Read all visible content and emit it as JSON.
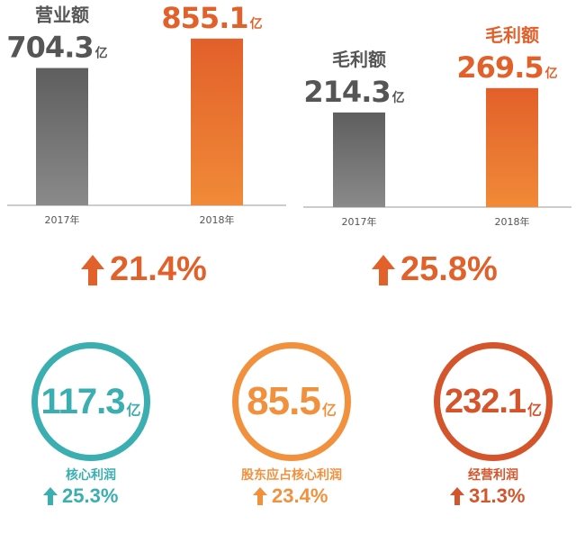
{
  "colors": {
    "gray": "#707070",
    "orange": "#e2602a",
    "orange_light": "#f08a38",
    "teal": "#3aaeb0",
    "amber": "#f1913e",
    "rust": "#d4552c",
    "text_dark": "#555555"
  },
  "chart_data": [
    {
      "type": "bar",
      "categories": [
        "2017年",
        "2018年"
      ],
      "series": [
        {
          "name": "营业额",
          "values": [
            704.3,
            855.1
          ]
        }
      ],
      "value_labels": [
        "704.3",
        "855.1"
      ],
      "unit": "亿",
      "growth": "21.4%"
    },
    {
      "type": "bar",
      "categories": [
        "2017年",
        "2018年"
      ],
      "series": [
        {
          "name": "毛利额",
          "values": [
            214.3,
            269.5
          ]
        }
      ],
      "value_labels": [
        "214.3",
        "269.5"
      ],
      "unit": "亿",
      "growth": "25.8%"
    }
  ],
  "stats": [
    {
      "value": "117.3",
      "unit": "亿",
      "label": "核心利润",
      "growth": "25.3%",
      "color": "#3aaeb0"
    },
    {
      "value": "85.5",
      "unit": "亿",
      "label": "股东应占核心利润",
      "growth": "23.4%",
      "color": "#f1913e"
    },
    {
      "value": "232.1",
      "unit": "亿",
      "label": "经营利润",
      "growth": "31.3%",
      "color": "#d4552c"
    }
  ]
}
